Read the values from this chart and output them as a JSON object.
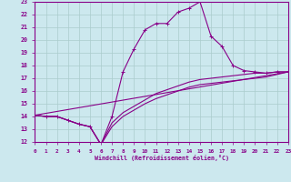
{
  "xlabel": "Windchill (Refroidissement éolien,°C)",
  "bg_color": "#cce8ee",
  "grid_color": "#aacccc",
  "line_color": "#880088",
  "xmin": 0,
  "xmax": 23,
  "ymin": 12,
  "ymax": 23,
  "line1_x": [
    0,
    1,
    2,
    3,
    4,
    5,
    6,
    7,
    8,
    9,
    10,
    11,
    12,
    13,
    14,
    15,
    16,
    17,
    18,
    19,
    20,
    21,
    22,
    23
  ],
  "line1_y": [
    14.1,
    14.0,
    14.0,
    13.7,
    13.4,
    13.2,
    11.8,
    14.0,
    17.5,
    19.3,
    20.8,
    21.3,
    21.3,
    22.2,
    22.5,
    23.0,
    20.3,
    19.5,
    18.0,
    17.6,
    17.5,
    17.4,
    17.5,
    17.5
  ],
  "line2_x": [
    0,
    1,
    2,
    3,
    4,
    5,
    6,
    7,
    8,
    9,
    10,
    11,
    12,
    13,
    14,
    15,
    16,
    17,
    18,
    19,
    20,
    21,
    22,
    23
  ],
  "line2_y": [
    14.1,
    14.0,
    14.0,
    13.7,
    13.4,
    13.2,
    11.8,
    13.5,
    14.3,
    14.8,
    15.3,
    15.8,
    16.1,
    16.4,
    16.7,
    16.9,
    17.0,
    17.1,
    17.2,
    17.3,
    17.4,
    17.4,
    17.5,
    17.5
  ],
  "line3_x": [
    0,
    1,
    2,
    3,
    4,
    5,
    6,
    7,
    8,
    9,
    10,
    11,
    12,
    13,
    14,
    15,
    16,
    17,
    18,
    19,
    20,
    21,
    22,
    23
  ],
  "line3_y": [
    14.1,
    14.0,
    14.0,
    13.7,
    13.4,
    13.2,
    11.8,
    13.2,
    14.0,
    14.5,
    15.0,
    15.4,
    15.7,
    16.0,
    16.3,
    16.5,
    16.6,
    16.7,
    16.8,
    16.9,
    17.0,
    17.1,
    17.3,
    17.5
  ],
  "line4_x": [
    0,
    23
  ],
  "line4_y": [
    14.1,
    17.5
  ]
}
